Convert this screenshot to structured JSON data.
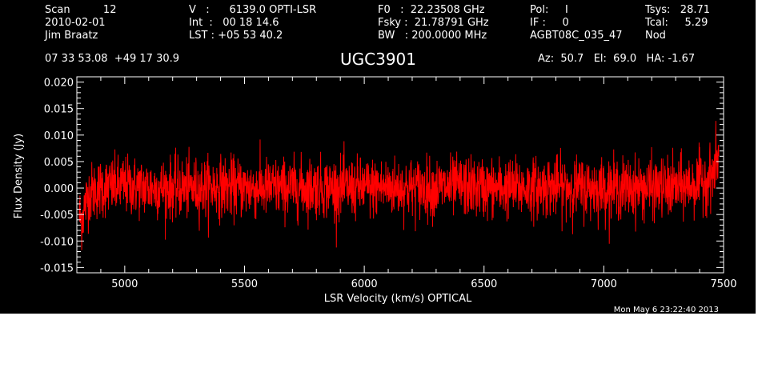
{
  "header": {
    "col1": [
      "Scan          12",
      "2010-02-01",
      "Jim Braatz"
    ],
    "col2": [
      "V   :      6139.0 OPTI-LSR",
      "Int  :   00 18 14.6",
      "LST : +05 53 40.2"
    ],
    "col3": [
      "F0   :  22.23508 GHz",
      "Fsky :  21.78791 GHz",
      "BW   : 200.0000 MHz"
    ],
    "col4": [
      "Pol:     I",
      "IF :     0",
      "AGBT08C_035_47"
    ],
    "col5": [
      "Tsys:   28.71",
      "Tcal:     5.29",
      "Nod"
    ],
    "coords": "07 33 53.08  +49 17 30.9",
    "object": "UGC3901",
    "pointing": "Az:  50.7   El:  69.0   HA: -1.67",
    "timestamp": "Mon May  6 23:22:40 2013"
  },
  "chart_data": {
    "type": "line",
    "title": "UGC3901",
    "xlabel": "LSR Velocity (km/s) OPTICAL",
    "ylabel": "Flux Density (Jy)",
    "xlim": [
      4800,
      7500
    ],
    "ylim": [
      -0.016,
      0.021
    ],
    "x_ticks": [
      5000,
      5500,
      6000,
      6500,
      7000,
      7500
    ],
    "x_tick_labels": [
      "5000",
      "5500",
      "6000",
      "6500",
      "7000",
      "7500"
    ],
    "y_ticks": [
      -0.015,
      -0.01,
      -0.005,
      0.0,
      0.005,
      0.01,
      0.015,
      0.02
    ],
    "y_tick_labels": [
      "-0.015",
      "-0.010",
      "-0.005",
      "0.000",
      "0.005",
      "0.010",
      "0.015",
      "0.020"
    ],
    "series": [
      {
        "color": "#ff0000",
        "x": [
          4810,
          4820,
          4830,
          4850,
          4900,
          5000,
          5100,
          5200,
          5300,
          5400,
          5500,
          5600,
          5700,
          5800,
          5900,
          6000,
          6100,
          6200,
          6300,
          6400,
          6500,
          6600,
          6700,
          6800,
          6900,
          7000,
          7100,
          7200,
          7300,
          7400,
          7420,
          7440,
          7460,
          7470,
          7480
        ],
        "y": [
          -0.005,
          -0.006,
          -0.004,
          -0.001,
          0.0,
          0.0005,
          0.0,
          0.0,
          0.0,
          0.0003,
          0.0,
          0.0,
          0.0,
          0.0002,
          0.0,
          0.0,
          0.0002,
          0.0,
          0.0,
          0.0003,
          0.0,
          0.0,
          0.0,
          0.0003,
          0.0,
          0.0,
          0.0,
          0.0,
          0.0,
          0.001,
          0.0015,
          0.002,
          0.003,
          0.005,
          0.006
        ],
        "noise_rms": 0.0028
      }
    ]
  },
  "colors": {
    "background": "#000000",
    "axes": "#ffffff",
    "trace": "#ff0000"
  }
}
